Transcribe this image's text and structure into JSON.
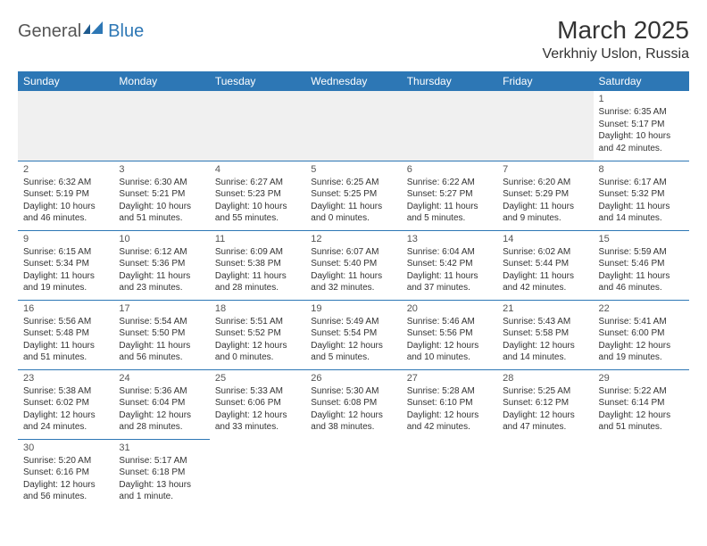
{
  "logo": {
    "general": "General",
    "blue": "Blue"
  },
  "title": "March 2025",
  "location": "Verkhniy Uslon, Russia",
  "colors": {
    "header_bg": "#2d77b5",
    "header_fg": "#ffffff",
    "border": "#2d77b5",
    "text": "#333333",
    "muted_bg": "#f0f0f0",
    "page_bg": "#ffffff"
  },
  "typography": {
    "title_fontsize": 28,
    "location_fontsize": 16,
    "dayhdr_fontsize": 12,
    "cell_fontsize": 10
  },
  "day_headers": [
    "Sunday",
    "Monday",
    "Tuesday",
    "Wednesday",
    "Thursday",
    "Friday",
    "Saturday"
  ],
  "weeks": [
    [
      null,
      null,
      null,
      null,
      null,
      null,
      {
        "n": "1",
        "sunrise": "Sunrise: 6:35 AM",
        "sunset": "Sunset: 5:17 PM",
        "daylight": "Daylight: 10 hours and 42 minutes."
      }
    ],
    [
      {
        "n": "2",
        "sunrise": "Sunrise: 6:32 AM",
        "sunset": "Sunset: 5:19 PM",
        "daylight": "Daylight: 10 hours and 46 minutes."
      },
      {
        "n": "3",
        "sunrise": "Sunrise: 6:30 AM",
        "sunset": "Sunset: 5:21 PM",
        "daylight": "Daylight: 10 hours and 51 minutes."
      },
      {
        "n": "4",
        "sunrise": "Sunrise: 6:27 AM",
        "sunset": "Sunset: 5:23 PM",
        "daylight": "Daylight: 10 hours and 55 minutes."
      },
      {
        "n": "5",
        "sunrise": "Sunrise: 6:25 AM",
        "sunset": "Sunset: 5:25 PM",
        "daylight": "Daylight: 11 hours and 0 minutes."
      },
      {
        "n": "6",
        "sunrise": "Sunrise: 6:22 AM",
        "sunset": "Sunset: 5:27 PM",
        "daylight": "Daylight: 11 hours and 5 minutes."
      },
      {
        "n": "7",
        "sunrise": "Sunrise: 6:20 AM",
        "sunset": "Sunset: 5:29 PM",
        "daylight": "Daylight: 11 hours and 9 minutes."
      },
      {
        "n": "8",
        "sunrise": "Sunrise: 6:17 AM",
        "sunset": "Sunset: 5:32 PM",
        "daylight": "Daylight: 11 hours and 14 minutes."
      }
    ],
    [
      {
        "n": "9",
        "sunrise": "Sunrise: 6:15 AM",
        "sunset": "Sunset: 5:34 PM",
        "daylight": "Daylight: 11 hours and 19 minutes."
      },
      {
        "n": "10",
        "sunrise": "Sunrise: 6:12 AM",
        "sunset": "Sunset: 5:36 PM",
        "daylight": "Daylight: 11 hours and 23 minutes."
      },
      {
        "n": "11",
        "sunrise": "Sunrise: 6:09 AM",
        "sunset": "Sunset: 5:38 PM",
        "daylight": "Daylight: 11 hours and 28 minutes."
      },
      {
        "n": "12",
        "sunrise": "Sunrise: 6:07 AM",
        "sunset": "Sunset: 5:40 PM",
        "daylight": "Daylight: 11 hours and 32 minutes."
      },
      {
        "n": "13",
        "sunrise": "Sunrise: 6:04 AM",
        "sunset": "Sunset: 5:42 PM",
        "daylight": "Daylight: 11 hours and 37 minutes."
      },
      {
        "n": "14",
        "sunrise": "Sunrise: 6:02 AM",
        "sunset": "Sunset: 5:44 PM",
        "daylight": "Daylight: 11 hours and 42 minutes."
      },
      {
        "n": "15",
        "sunrise": "Sunrise: 5:59 AM",
        "sunset": "Sunset: 5:46 PM",
        "daylight": "Daylight: 11 hours and 46 minutes."
      }
    ],
    [
      {
        "n": "16",
        "sunrise": "Sunrise: 5:56 AM",
        "sunset": "Sunset: 5:48 PM",
        "daylight": "Daylight: 11 hours and 51 minutes."
      },
      {
        "n": "17",
        "sunrise": "Sunrise: 5:54 AM",
        "sunset": "Sunset: 5:50 PM",
        "daylight": "Daylight: 11 hours and 56 minutes."
      },
      {
        "n": "18",
        "sunrise": "Sunrise: 5:51 AM",
        "sunset": "Sunset: 5:52 PM",
        "daylight": "Daylight: 12 hours and 0 minutes."
      },
      {
        "n": "19",
        "sunrise": "Sunrise: 5:49 AM",
        "sunset": "Sunset: 5:54 PM",
        "daylight": "Daylight: 12 hours and 5 minutes."
      },
      {
        "n": "20",
        "sunrise": "Sunrise: 5:46 AM",
        "sunset": "Sunset: 5:56 PM",
        "daylight": "Daylight: 12 hours and 10 minutes."
      },
      {
        "n": "21",
        "sunrise": "Sunrise: 5:43 AM",
        "sunset": "Sunset: 5:58 PM",
        "daylight": "Daylight: 12 hours and 14 minutes."
      },
      {
        "n": "22",
        "sunrise": "Sunrise: 5:41 AM",
        "sunset": "Sunset: 6:00 PM",
        "daylight": "Daylight: 12 hours and 19 minutes."
      }
    ],
    [
      {
        "n": "23",
        "sunrise": "Sunrise: 5:38 AM",
        "sunset": "Sunset: 6:02 PM",
        "daylight": "Daylight: 12 hours and 24 minutes."
      },
      {
        "n": "24",
        "sunrise": "Sunrise: 5:36 AM",
        "sunset": "Sunset: 6:04 PM",
        "daylight": "Daylight: 12 hours and 28 minutes."
      },
      {
        "n": "25",
        "sunrise": "Sunrise: 5:33 AM",
        "sunset": "Sunset: 6:06 PM",
        "daylight": "Daylight: 12 hours and 33 minutes."
      },
      {
        "n": "26",
        "sunrise": "Sunrise: 5:30 AM",
        "sunset": "Sunset: 6:08 PM",
        "daylight": "Daylight: 12 hours and 38 minutes."
      },
      {
        "n": "27",
        "sunrise": "Sunrise: 5:28 AM",
        "sunset": "Sunset: 6:10 PM",
        "daylight": "Daylight: 12 hours and 42 minutes."
      },
      {
        "n": "28",
        "sunrise": "Sunrise: 5:25 AM",
        "sunset": "Sunset: 6:12 PM",
        "daylight": "Daylight: 12 hours and 47 minutes."
      },
      {
        "n": "29",
        "sunrise": "Sunrise: 5:22 AM",
        "sunset": "Sunset: 6:14 PM",
        "daylight": "Daylight: 12 hours and 51 minutes."
      }
    ],
    [
      {
        "n": "30",
        "sunrise": "Sunrise: 5:20 AM",
        "sunset": "Sunset: 6:16 PM",
        "daylight": "Daylight: 12 hours and 56 minutes."
      },
      {
        "n": "31",
        "sunrise": "Sunrise: 5:17 AM",
        "sunset": "Sunset: 6:18 PM",
        "daylight": "Daylight: 13 hours and 1 minute."
      },
      null,
      null,
      null,
      null,
      null
    ]
  ]
}
